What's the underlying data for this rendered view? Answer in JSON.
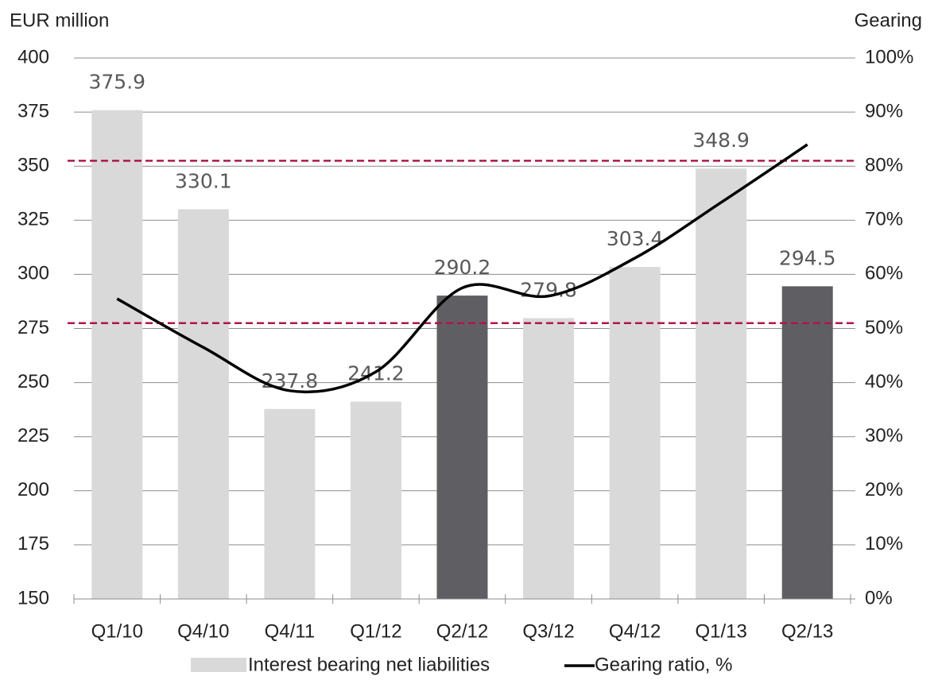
{
  "chart_data": {
    "type": "bar_line",
    "y_label": "EUR million",
    "y2_label": "Gearing",
    "categories": [
      "Q1/10",
      "Q4/10",
      "Q4/11",
      "Q1/12",
      "Q2/12",
      "Q3/12",
      "Q4/12",
      "Q1/13",
      "Q2/13"
    ],
    "series": [
      {
        "name": "Interest bearing net liabilities",
        "type": "bar",
        "color": "#d9d9d9",
        "colors": [
          "#d9d9d9",
          "#d9d9d9",
          "#d9d9d9",
          "#d9d9d9",
          "#5f5f63",
          "#d9d9d9",
          "#d9d9d9",
          "#d9d9d9",
          "#5f5f63"
        ],
        "values": [
          375.9,
          330.1,
          237.8,
          241.2,
          290.2,
          279.8,
          303.4,
          348.9,
          294.5
        ]
      },
      {
        "name": "Gearing ratio, %",
        "type": "line",
        "color": "#000000",
        "axis": "y2",
        "values": [
          55.5,
          46.5,
          38.5,
          42,
          57.5,
          56,
          63,
          73.3,
          84
        ]
      }
    ],
    "reference_lines": {
      "axis": "y2",
      "color": "#b0154a",
      "values": [
        81,
        51
      ]
    },
    "ylim": [
      150,
      400
    ],
    "yticks": [
      150,
      175,
      200,
      225,
      250,
      275,
      300,
      325,
      350,
      375,
      400
    ],
    "y2lim": [
      0,
      100
    ],
    "y2ticks": [
      {
        "value": 0,
        "label": "0%"
      },
      {
        "value": 10,
        "label": "10%"
      },
      {
        "value": 20,
        "label": "20%"
      },
      {
        "value": 30,
        "label": "30%"
      },
      {
        "value": 40,
        "label": "40%"
      },
      {
        "value": 50,
        "label": "50%"
      },
      {
        "value": 60,
        "label": "60%"
      },
      {
        "value": 70,
        "label": "70%"
      },
      {
        "value": 80,
        "label": "80%"
      },
      {
        "value": 90,
        "label": "90%"
      },
      {
        "value": 100,
        "label": "100%"
      }
    ],
    "grid": true
  }
}
